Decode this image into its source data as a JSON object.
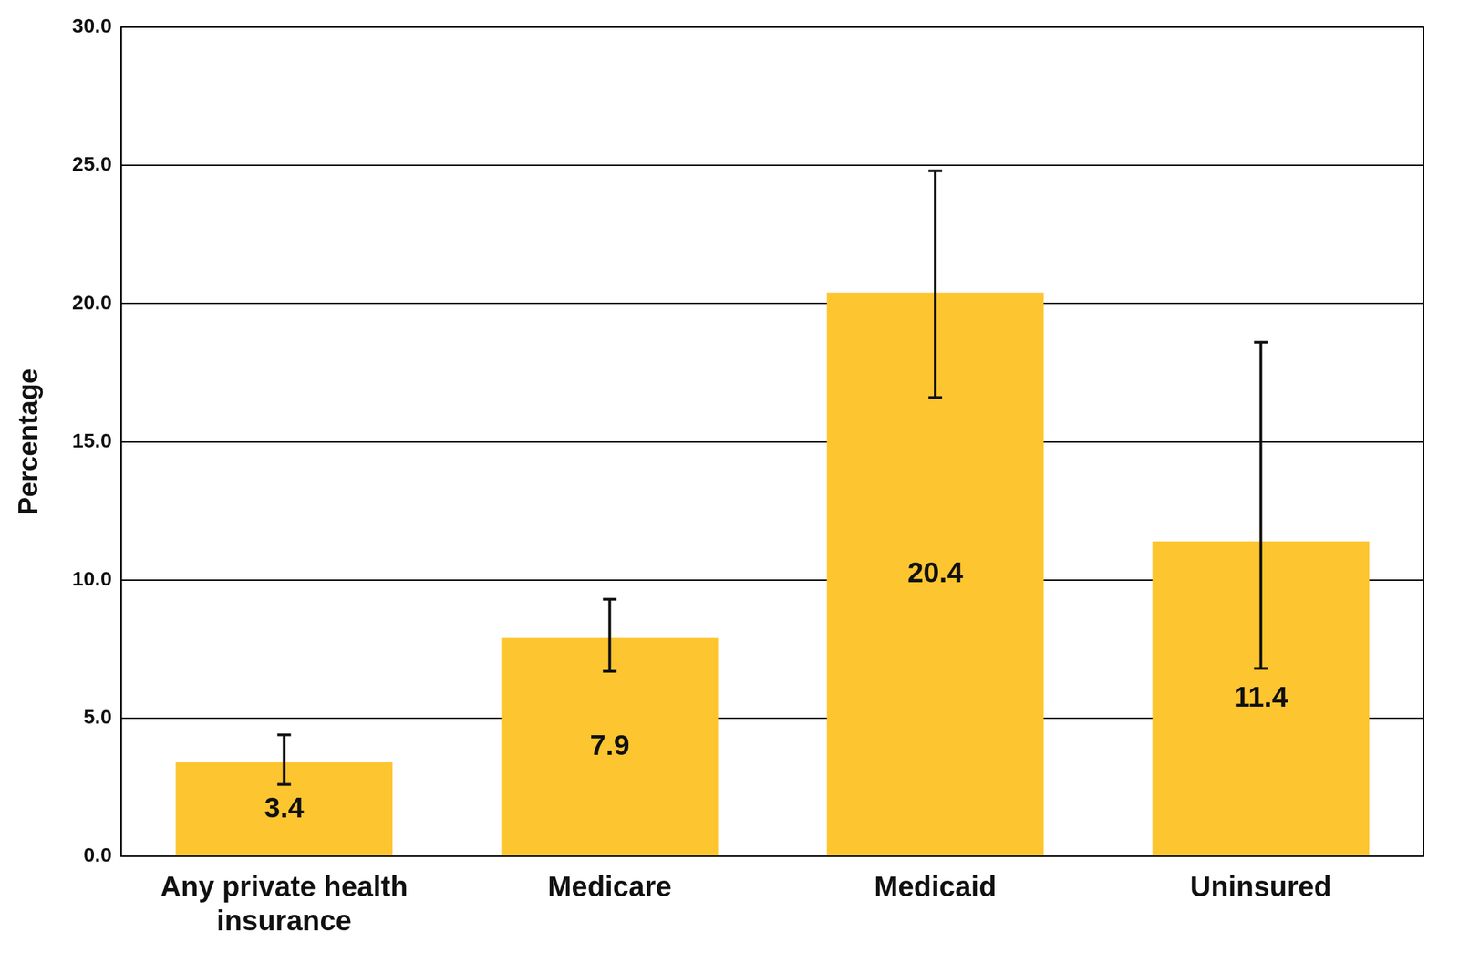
{
  "chart_data": {
    "type": "bar",
    "y_label": "Percentage",
    "categories": [
      "Any private health insurance",
      "Medicare",
      "Medicaid",
      "Uninsured"
    ],
    "values": [
      3.4,
      7.9,
      20.4,
      11.4
    ],
    "error_low": [
      2.6,
      6.7,
      16.6,
      6.8
    ],
    "error_high": [
      4.4,
      9.3,
      24.8,
      18.6
    ],
    "color": "#fdc52f",
    "ylim": [
      0,
      30
    ],
    "yticks": [
      {
        "value": 0,
        "label": "0.0"
      },
      {
        "value": 5,
        "label": "5.0"
      },
      {
        "value": 10,
        "label": "10.0"
      },
      {
        "value": 15,
        "label": "15.0"
      },
      {
        "value": 20,
        "label": "20.0"
      },
      {
        "value": 25,
        "label": "25.0"
      },
      {
        "value": 30,
        "label": "30.0"
      }
    ],
    "grid": true,
    "data_labels": true
  }
}
